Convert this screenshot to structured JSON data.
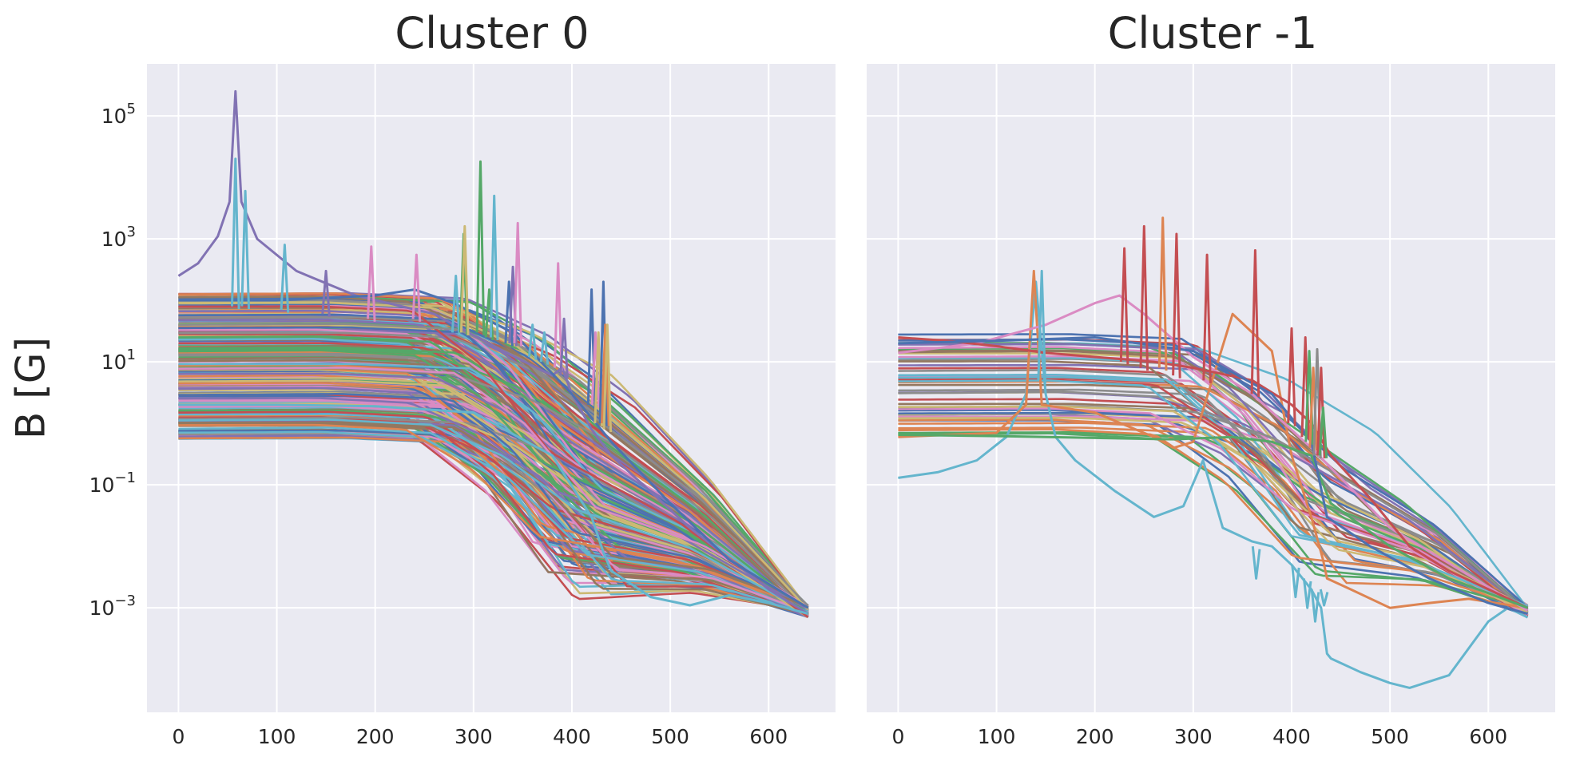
{
  "ylabel": "B [G]",
  "colors": {
    "background": "#eaeaf2",
    "grid": "#ffffff",
    "text": "#262626",
    "palette": [
      "#4c72b0",
      "#dd8452",
      "#55a868",
      "#c44e52",
      "#8172b3",
      "#937860",
      "#da8bc3",
      "#8c8c8c",
      "#ccb974",
      "#64b5cd"
    ]
  },
  "chart_data": [
    {
      "type": "line",
      "title": "Cluster 0",
      "xlabel": "",
      "ylabel": "B [G]",
      "x_scale": "linear",
      "y_scale": "log",
      "xlim": [
        -32,
        668
      ],
      "ylim": [
        2e-05,
        700000
      ],
      "x_ticks": [
        "0",
        "100",
        "200",
        "300",
        "400",
        "500",
        "600"
      ],
      "y_ticks": [
        {
          "base": "10",
          "exp": "5"
        },
        {
          "base": "10",
          "exp": "3"
        },
        {
          "base": "10",
          "exp": "1"
        },
        {
          "base": "10",
          "exp": "−1"
        },
        {
          "base": "10",
          "exp": "−3"
        }
      ],
      "grid": true,
      "series_count_estimate": 300,
      "plateau_range": [
        0.55,
        130
      ],
      "shoulder_range": [
        230,
        300
      ],
      "curve_end": {
        "x": 640,
        "range": [
          0.0007,
          0.0011
        ]
      },
      "highlighted": [
        {
          "color": "#8172b3",
          "x": [
            0,
            20,
            40,
            52,
            58,
            64,
            80,
            120,
            180,
            260,
            330,
            380,
            390,
            400,
            420,
            440,
            520,
            600,
            640
          ],
          "y": [
            250,
            400,
            1100,
            4000,
            250000,
            4000,
            1000,
            300,
            120,
            60,
            15,
            6,
            8,
            3,
            0.8,
            0.3,
            0.02,
            0.002,
            0.0008
          ]
        },
        {
          "color": "#64b5cd",
          "x": [
            0,
            100,
            200,
            300,
            380,
            420,
            432,
            440,
            480,
            520,
            560,
            600,
            640
          ],
          "y": [
            2,
            2,
            1.9,
            1.5,
            0.3,
            0.03,
            0.008,
            0.004,
            0.0015,
            0.0011,
            0.0016,
            0.0012,
            0.0008
          ]
        },
        {
          "color": "#4c72b0",
          "x": [
            0,
            100,
            200,
            240,
            280,
            340,
            400,
            440,
            500,
            560,
            640
          ],
          "y": [
            100,
            100,
            120,
            150,
            90,
            30,
            3,
            0.5,
            0.05,
            0.006,
            0.001
          ]
        }
      ],
      "spikes": [
        {
          "color": "#64b5cd",
          "x": 58,
          "peak": 20000,
          "base": 80
        },
        {
          "color": "#64b5cd",
          "x": 68,
          "peak": 6000,
          "base": 80
        },
        {
          "color": "#64b5cd",
          "x": 108,
          "peak": 800,
          "base": 70
        },
        {
          "color": "#8172b3",
          "x": 150,
          "peak": 300,
          "base": 60
        },
        {
          "color": "#da8bc3",
          "x": 196,
          "peak": 750,
          "base": 50
        },
        {
          "color": "#da8bc3",
          "x": 242,
          "peak": 550,
          "base": 50
        },
        {
          "color": "#64b5cd",
          "x": 282,
          "peak": 250,
          "base": 30
        },
        {
          "color": "#55a868",
          "x": 290,
          "peak": 1200,
          "base": 30
        },
        {
          "color": "#ccb974",
          "x": 291,
          "peak": 1600,
          "base": 30
        },
        {
          "color": "#55a868",
          "x": 307,
          "peak": 18000,
          "base": 30
        },
        {
          "color": "#55a868",
          "x": 316,
          "peak": 150,
          "base": 25
        },
        {
          "color": "#64b5cd",
          "x": 321,
          "peak": 5000,
          "base": 25
        },
        {
          "color": "#4c72b0",
          "x": 336,
          "peak": 200,
          "base": 20
        },
        {
          "color": "#8172b3",
          "x": 340,
          "peak": 350,
          "base": 20
        },
        {
          "color": "#da8bc3",
          "x": 345,
          "peak": 1800,
          "base": 20
        },
        {
          "color": "#64b5cd",
          "x": 360,
          "peak": 40,
          "base": 12
        },
        {
          "color": "#64b5cd",
          "x": 372,
          "peak": 30,
          "base": 10
        },
        {
          "color": "#da8bc3",
          "x": 386,
          "peak": 400,
          "base": 8
        },
        {
          "color": "#8172b3",
          "x": 392,
          "peak": 50,
          "base": 6
        },
        {
          "color": "#4c72b0",
          "x": 420,
          "peak": 150,
          "base": 2
        },
        {
          "color": "#da8bc3",
          "x": 424,
          "peak": 30,
          "base": 2
        },
        {
          "color": "#ccb974",
          "x": 427,
          "peak": 30,
          "base": 1
        },
        {
          "color": "#4c72b0",
          "x": 432,
          "peak": 200,
          "base": 1
        },
        {
          "color": "#dd8452",
          "x": 434,
          "peak": 40,
          "base": 1
        },
        {
          "color": "#ccb974",
          "x": 436,
          "peak": 40,
          "base": 0.8
        }
      ]
    },
    {
      "type": "line",
      "title": "Cluster -1",
      "xlabel": "",
      "ylabel": "",
      "x_scale": "linear",
      "y_scale": "log",
      "xlim": [
        -32,
        668
      ],
      "ylim": [
        2e-05,
        700000
      ],
      "x_ticks": [
        "0",
        "100",
        "200",
        "300",
        "400",
        "500",
        "600"
      ],
      "y_ticks": [],
      "grid": true,
      "series_count_estimate": 50,
      "plateau_range": [
        0.6,
        28
      ],
      "shoulder_range": [
        250,
        320
      ],
      "curve_end": {
        "x": 640,
        "range": [
          0.0007,
          0.0011
        ]
      },
      "highlighted": [
        {
          "color": "#64b5cd",
          "x": [
            0,
            40,
            80,
            110,
            130,
            140,
            150,
            160,
            180,
            220,
            260,
            290,
            310,
            330,
            360,
            380,
            400,
            420,
            430,
            436,
            440,
            470,
            500,
            520,
            560,
            600,
            620,
            640
          ],
          "y": [
            0.13,
            0.16,
            0.25,
            0.6,
            3,
            200,
            3,
            0.6,
            0.25,
            0.08,
            0.03,
            0.045,
            0.25,
            0.02,
            0.012,
            0.01,
            0.005,
            0.002,
            0.001,
            0.00018,
            0.00015,
            9e-05,
            6e-05,
            5e-05,
            8e-05,
            0.0006,
            0.001,
            0.0007
          ]
        },
        {
          "color": "#dd8452",
          "x": [
            0,
            100,
            130,
            138,
            146,
            200,
            260,
            280,
            300,
            340,
            380,
            400,
            420,
            432,
            436,
            460,
            500,
            540,
            580,
            640
          ],
          "y": [
            0.6,
            0.7,
            2,
            300,
            2,
            1.5,
            0.6,
            0.4,
            0.5,
            60,
            15,
            0.3,
            0.03,
            0.006,
            0.003,
            0.002,
            0.001,
            0.0012,
            0.0014,
            0.001
          ]
        },
        {
          "color": "#da8bc3",
          "x": [
            0,
            80,
            150,
            200,
            225,
            250,
            300,
            360,
            420,
            500,
            640
          ],
          "y": [
            14,
            20,
            40,
            90,
            120,
            60,
            12,
            3,
            0.4,
            0.02,
            0.0009
          ]
        },
        {
          "color": "#c44e52",
          "x": [
            0,
            50,
            100,
            150,
            200,
            260,
            300,
            360,
            400,
            420,
            440,
            480,
            520,
            560,
            600,
            640
          ],
          "y": [
            25,
            22,
            18,
            14,
            12,
            10,
            8,
            5,
            2,
            1,
            0.3,
            0.06,
            0.01,
            0.004,
            0.002,
            0.001
          ]
        },
        {
          "color": "#55a868",
          "x": [
            0,
            100,
            200,
            280,
            340,
            380,
            420,
            440,
            500,
            560,
            640
          ],
          "y": [
            0.65,
            0.62,
            0.58,
            0.55,
            0.6,
            0.5,
            0.3,
            0.05,
            0.01,
            0.003,
            0.001
          ]
        },
        {
          "color": "#4c72b0",
          "x": [
            0,
            100,
            200,
            300,
            380,
            420,
            436,
            480,
            540,
            600,
            640
          ],
          "y": [
            20,
            22,
            25,
            15,
            3,
            0.5,
            0.03,
            0.01,
            0.003,
            0.0012,
            0.0008
          ]
        }
      ],
      "spikes": [
        {
          "color": "#64b5cd",
          "x": 146,
          "peak": 300,
          "base": 5
        },
        {
          "color": "#c44e52",
          "x": 230,
          "peak": 700,
          "base": 10
        },
        {
          "color": "#c44e52",
          "x": 250,
          "peak": 1600,
          "base": 8
        },
        {
          "color": "#dd8452",
          "x": 269,
          "peak": 2200,
          "base": 8
        },
        {
          "color": "#c44e52",
          "x": 283,
          "peak": 1200,
          "base": 6
        },
        {
          "color": "#c44e52",
          "x": 314,
          "peak": 550,
          "base": 5
        },
        {
          "color": "#c44e52",
          "x": 363,
          "peak": 650,
          "base": 3
        },
        {
          "color": "#64b5cd",
          "x": 364,
          "peak": 0.003,
          "base": 0.01
        },
        {
          "color": "#c44e52",
          "x": 400,
          "peak": 35,
          "base": 1
        },
        {
          "color": "#64b5cd",
          "x": 404,
          "peak": 0.0015,
          "base": 0.005
        },
        {
          "color": "#c44e52",
          "x": 414,
          "peak": 25,
          "base": 0.6
        },
        {
          "color": "#64b5cd",
          "x": 416,
          "peak": 0.001,
          "base": 0.003
        },
        {
          "color": "#55a868",
          "x": 418,
          "peak": 15,
          "base": 0.5
        },
        {
          "color": "#dd8452",
          "x": 422,
          "peak": 8,
          "base": 0.4
        },
        {
          "color": "#64b5cd",
          "x": 424,
          "peak": 0.0006,
          "base": 0.002
        },
        {
          "color": "#8c8c8c",
          "x": 426,
          "peak": 16,
          "base": 0.3
        },
        {
          "color": "#c44e52",
          "x": 430,
          "peak": 8,
          "base": 0.3
        },
        {
          "color": "#55a868",
          "x": 432,
          "peak": 1.8,
          "base": 0.3
        },
        {
          "color": "#64b5cd",
          "x": 433,
          "peak": 0.0011,
          "base": 0.002
        }
      ]
    }
  ]
}
